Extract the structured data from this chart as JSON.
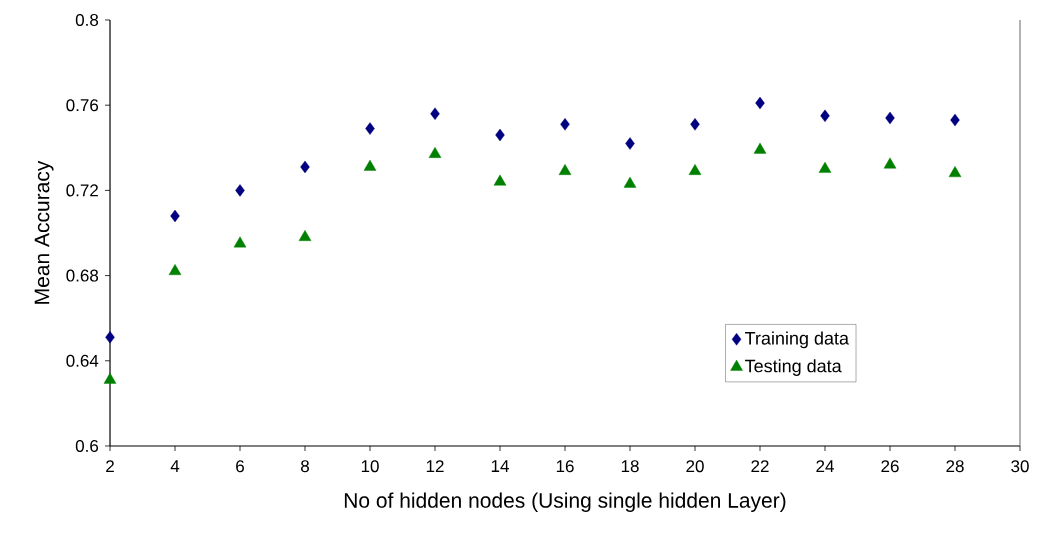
{
  "chart_data": {
    "type": "scatter",
    "xlabel": "No of hidden nodes (Using single hidden Layer)",
    "ylabel": "Mean Accuracy",
    "x": [
      2,
      4,
      6,
      8,
      10,
      12,
      14,
      16,
      18,
      20,
      22,
      24,
      26,
      28
    ],
    "series": [
      {
        "name": "Training data",
        "color": "#000080",
        "marker": "diamond",
        "values": [
          0.651,
          0.708,
          0.72,
          0.731,
          0.749,
          0.756,
          0.746,
          0.751,
          0.742,
          0.751,
          0.761,
          0.755,
          0.754,
          0.753
        ]
      },
      {
        "name": "Testing data",
        "color": "#008000",
        "marker": "triangle",
        "values": [
          0.631,
          0.682,
          0.695,
          0.698,
          0.731,
          0.737,
          0.724,
          0.729,
          0.723,
          0.729,
          0.739,
          0.73,
          0.732,
          0.728
        ]
      }
    ],
    "xlim": [
      2,
      30
    ],
    "ylim": [
      0.6,
      0.8
    ],
    "xticks": [
      2,
      4,
      6,
      8,
      10,
      12,
      14,
      16,
      18,
      20,
      22,
      24,
      26,
      28,
      30
    ],
    "yticks": [
      0.6,
      0.64,
      0.68,
      0.72,
      0.76,
      0.8
    ],
    "legend": "bottom right"
  }
}
